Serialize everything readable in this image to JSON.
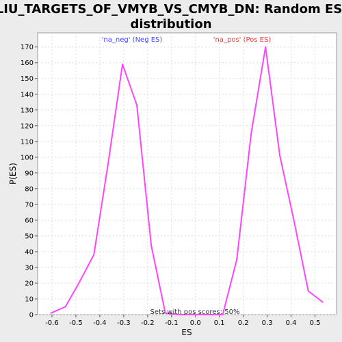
{
  "chart_data": {
    "type": "line",
    "title_line1": "LIU_TARGETS_OF_VMYB_VS_CMYB_DN: Random ES",
    "title_line2": "distribution",
    "xlabel": "ES",
    "ylabel": "P(ES)",
    "xlim": [
      -0.66,
      0.59
    ],
    "ylim": [
      0,
      179
    ],
    "x_ticks": [
      -0.6,
      -0.5,
      -0.4,
      -0.3,
      -0.2,
      -0.1,
      0.0,
      0.1,
      0.2,
      0.3,
      0.4,
      0.5
    ],
    "x_tick_labels": [
      "-0.6",
      "-0.5",
      "-0.4",
      "-0.3",
      "-0.2",
      "-0.1",
      "0.0",
      "0.1",
      "0.2",
      "0.3",
      "0.4",
      "0.5"
    ],
    "y_ticks": [
      0,
      10,
      20,
      30,
      40,
      50,
      60,
      70,
      80,
      90,
      100,
      110,
      120,
      130,
      140,
      150,
      160,
      170
    ],
    "y_tick_labels": [
      "0",
      "10",
      "20",
      "30",
      "40",
      "50",
      "60",
      "70",
      "80",
      "90",
      "100",
      "110",
      "120",
      "130",
      "140",
      "150",
      "160",
      "170"
    ],
    "grid": true,
    "series": [
      {
        "color": "#ff44ff",
        "x": [
          -0.604,
          -0.544,
          -0.484,
          -0.425,
          -0.365,
          -0.305,
          -0.245,
          -0.185,
          -0.126,
          -0.066,
          -0.006,
          0.054,
          0.114,
          0.173,
          0.233,
          0.293,
          0.353,
          0.413,
          0.472,
          0.532
        ],
        "y": [
          1,
          5,
          21,
          38,
          96,
          159,
          133,
          44,
          1,
          0,
          0,
          0,
          0,
          35,
          115,
          170,
          101,
          59,
          15,
          8
        ]
      }
    ],
    "annotations": [
      {
        "text": "'na_neg' (Neg ES)",
        "color": "#4444ff"
      },
      {
        "text": "'na_pos' (Pos ES)",
        "color": "#ff3333"
      }
    ],
    "footnote": "Sets with pos scores: 50%"
  }
}
